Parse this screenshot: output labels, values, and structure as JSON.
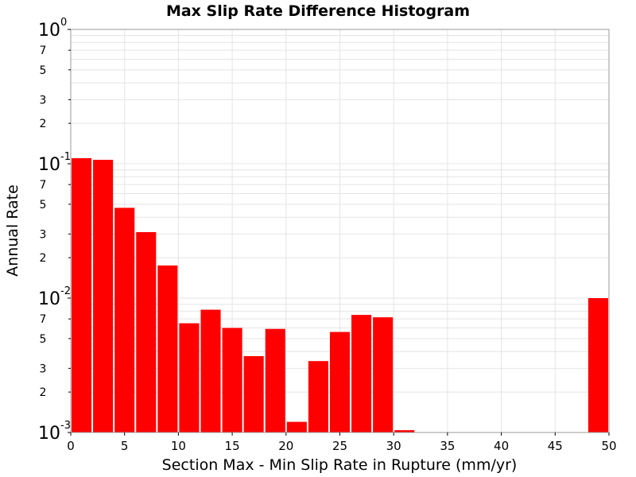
{
  "chart_data": {
    "type": "bar",
    "title": "Max Slip Rate Difference Histogram",
    "xlabel": "Section Max - Min Slip Rate in Rupture (mm/yr)",
    "ylabel": "Annual Rate",
    "xlim": [
      0,
      50
    ],
    "ylim": [
      0.001,
      1
    ],
    "yscale": "log",
    "grid": true,
    "bar_color": "#ff0000",
    "bin_width": 2,
    "x": [
      1,
      3,
      5,
      7,
      9,
      11,
      13,
      15,
      17,
      19,
      21,
      23,
      25,
      27,
      29,
      31,
      49
    ],
    "values": [
      0.11,
      0.107,
      0.047,
      0.031,
      0.0175,
      0.0065,
      0.0082,
      0.006,
      0.0037,
      0.0059,
      0.0012,
      0.0034,
      0.0056,
      0.0075,
      0.0072,
      0.00104,
      0.01
    ],
    "x_ticks": [
      "0",
      "5",
      "10",
      "15",
      "20",
      "25",
      "30",
      "35",
      "40",
      "45",
      "50"
    ],
    "y_major_ticks": [
      {
        "base": "10",
        "exp": "0"
      },
      {
        "base": "10",
        "exp": "-1"
      },
      {
        "base": "10",
        "exp": "-2"
      },
      {
        "base": "10",
        "exp": "-3"
      }
    ],
    "y_minor_labels": [
      "2",
      "3",
      "5",
      "7"
    ]
  }
}
